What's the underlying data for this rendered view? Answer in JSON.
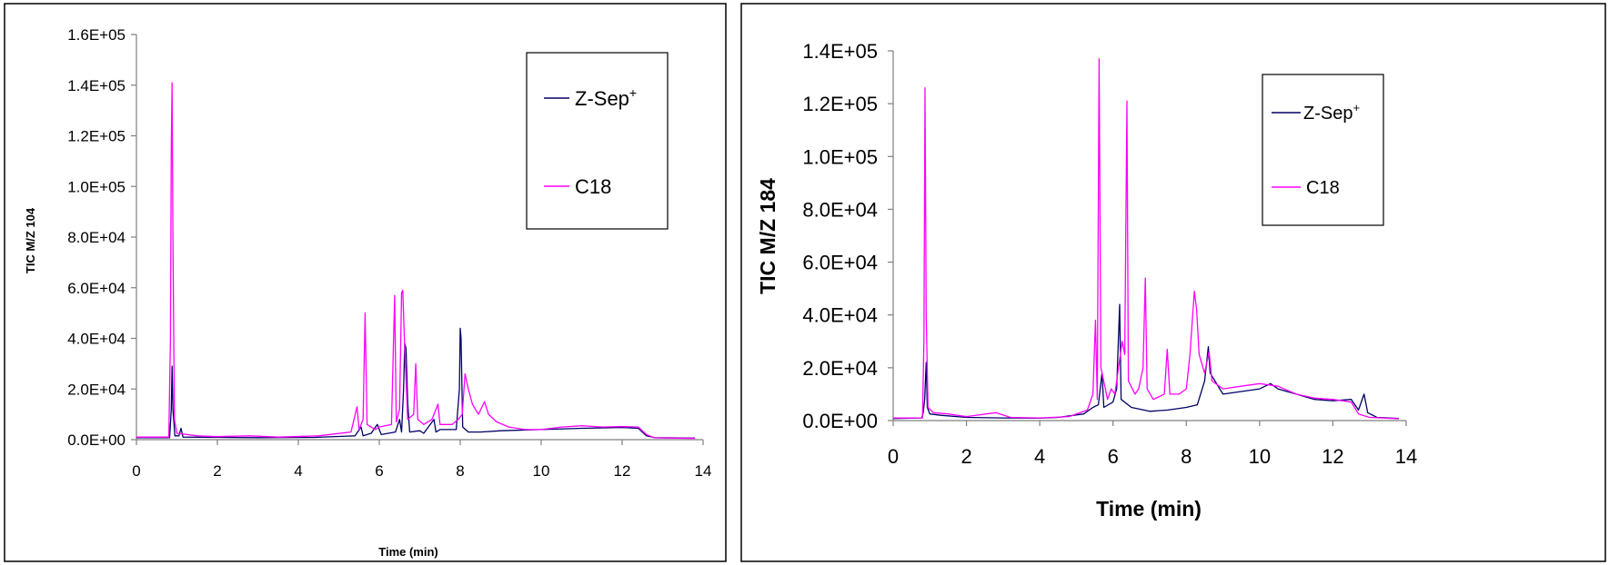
{
  "colors": {
    "zsep": "#000066",
    "c18": "#ff00ff",
    "axis": "#7f7f7f",
    "frame": "#000000"
  },
  "chart_data": [
    {
      "type": "line",
      "xlabel": "Time (min)",
      "ylabel": "TIC M/Z 104",
      "xlim": [
        0,
        14
      ],
      "ylim": [
        0,
        160000
      ],
      "x_ticks": [
        "0",
        "2",
        "4",
        "6",
        "8",
        "10",
        "12",
        "14"
      ],
      "y_ticks": [
        "0.0E+00",
        "2.0E+04",
        "4.0E+04",
        "6.0E+04",
        "8.0E+04",
        "1.0E+05",
        "1.2E+05",
        "1.4E+05",
        "1.6E+05"
      ],
      "grid": false,
      "legend_position": "top-right",
      "legend": {
        "zsep_label": "Z-Sep",
        "zsep_sup": "+",
        "c18_label": "C18"
      },
      "series": [
        {
          "name": "Z-Sep+",
          "color": "#000066",
          "points": [
            [
              0,
              800
            ],
            [
              0.82,
              800
            ],
            [
              0.86,
              12000
            ],
            [
              0.88,
              29000
            ],
            [
              0.9,
              12000
            ],
            [
              0.95,
              1500
            ],
            [
              1.05,
              1500
            ],
            [
              1.1,
              4500
            ],
            [
              1.15,
              1000
            ],
            [
              2,
              900
            ],
            [
              3,
              800
            ],
            [
              4.4,
              900
            ],
            [
              5.4,
              1500
            ],
            [
              5.55,
              5000
            ],
            [
              5.6,
              1500
            ],
            [
              5.8,
              2500
            ],
            [
              5.95,
              6000
            ],
            [
              6.05,
              2000
            ],
            [
              6.4,
              3000
            ],
            [
              6.5,
              8000
            ],
            [
              6.55,
              3000
            ],
            [
              6.6,
              20000
            ],
            [
              6.63,
              38000
            ],
            [
              6.66,
              36000
            ],
            [
              6.7,
              15000
            ],
            [
              6.75,
              3000
            ],
            [
              7.0,
              3500
            ],
            [
              7.1,
              2500
            ],
            [
              7.35,
              8000
            ],
            [
              7.4,
              3000
            ],
            [
              7.5,
              4000
            ],
            [
              7.9,
              4000
            ],
            [
              7.98,
              20000
            ],
            [
              8.0,
              44000
            ],
            [
              8.02,
              40000
            ],
            [
              8.06,
              5000
            ],
            [
              8.2,
              3000
            ],
            [
              8.5,
              3000
            ],
            [
              9.0,
              3500
            ],
            [
              10,
              4000
            ],
            [
              11,
              4500
            ],
            [
              12,
              4800
            ],
            [
              12.4,
              4500
            ],
            [
              12.6,
              1500
            ],
            [
              12.8,
              800
            ],
            [
              13.8,
              600
            ]
          ]
        },
        {
          "name": "C18",
          "color": "#ff00ff",
          "points": [
            [
              0,
              1000
            ],
            [
              0.8,
              1000
            ],
            [
              0.84,
              40000
            ],
            [
              0.86,
              115000
            ],
            [
              0.88,
              141000
            ],
            [
              0.9,
              80000
            ],
            [
              0.94,
              8000
            ],
            [
              1.0,
              2500
            ],
            [
              1.5,
              1500
            ],
            [
              2,
              1200
            ],
            [
              2.8,
              1500
            ],
            [
              3.5,
              1000
            ],
            [
              4.5,
              1500
            ],
            [
              5.3,
              3000
            ],
            [
              5.45,
              13000
            ],
            [
              5.5,
              4000
            ],
            [
              5.6,
              8000
            ],
            [
              5.65,
              50000
            ],
            [
              5.7,
              6000
            ],
            [
              5.9,
              4000
            ],
            [
              6.0,
              5000
            ],
            [
              6.3,
              6000
            ],
            [
              6.38,
              57000
            ],
            [
              6.42,
              7000
            ],
            [
              6.5,
              12000
            ],
            [
              6.55,
              58000
            ],
            [
              6.58,
              59000
            ],
            [
              6.62,
              40000
            ],
            [
              6.7,
              8000
            ],
            [
              6.85,
              10000
            ],
            [
              6.9,
              30000
            ],
            [
              6.95,
              8000
            ],
            [
              7.1,
              6000
            ],
            [
              7.3,
              8000
            ],
            [
              7.45,
              14000
            ],
            [
              7.5,
              6000
            ],
            [
              7.8,
              6000
            ],
            [
              7.95,
              8000
            ],
            [
              8.05,
              10000
            ],
            [
              8.12,
              26000
            ],
            [
              8.2,
              20000
            ],
            [
              8.3,
              14000
            ],
            [
              8.45,
              10000
            ],
            [
              8.6,
              15000
            ],
            [
              8.7,
              10000
            ],
            [
              8.9,
              7000
            ],
            [
              9.2,
              5000
            ],
            [
              9.6,
              4000
            ],
            [
              10,
              4000
            ],
            [
              10.5,
              5000
            ],
            [
              11,
              5500
            ],
            [
              11.5,
              5000
            ],
            [
              12,
              5200
            ],
            [
              12.4,
              5000
            ],
            [
              12.6,
              2000
            ],
            [
              12.8,
              700
            ],
            [
              13.8,
              500
            ]
          ]
        }
      ]
    },
    {
      "type": "line",
      "xlabel": "Time (min)",
      "ylabel": "TIC M/Z 184",
      "xlim": [
        0,
        14
      ],
      "ylim": [
        0,
        140000
      ],
      "x_ticks": [
        "0",
        "2",
        "4",
        "6",
        "8",
        "10",
        "12",
        "14"
      ],
      "y_ticks": [
        "0.0E+00",
        "2.0E+04",
        "4.0E+04",
        "6.0E+04",
        "8.0E+04",
        "1.0E+05",
        "1.2E+05",
        "1.4E+05"
      ],
      "grid": false,
      "legend_position": "top-right",
      "legend": {
        "zsep_label": "Z-Sep",
        "zsep_sup": "+",
        "c18_label": "C18"
      },
      "series": [
        {
          "name": "Z-Sep+",
          "color": "#000066",
          "points": [
            [
              0,
              800
            ],
            [
              0.78,
              1000
            ],
            [
              0.82,
              3000
            ],
            [
              0.86,
              8000
            ],
            [
              0.9,
              22000
            ],
            [
              0.93,
              5000
            ],
            [
              1.0,
              2500
            ],
            [
              1.3,
              2000
            ],
            [
              2,
              1200
            ],
            [
              3,
              1000
            ],
            [
              4,
              900
            ],
            [
              4.5,
              1200
            ],
            [
              5.2,
              2500
            ],
            [
              5.45,
              5000
            ],
            [
              5.6,
              6000
            ],
            [
              5.7,
              18000
            ],
            [
              5.75,
              5000
            ],
            [
              6.0,
              7000
            ],
            [
              6.1,
              12000
            ],
            [
              6.18,
              44000
            ],
            [
              6.22,
              8000
            ],
            [
              6.5,
              5000
            ],
            [
              7.0,
              3500
            ],
            [
              7.5,
              4000
            ],
            [
              8.0,
              5000
            ],
            [
              8.3,
              6000
            ],
            [
              8.5,
              15000
            ],
            [
              8.6,
              28000
            ],
            [
              8.65,
              18000
            ],
            [
              9.0,
              10000
            ],
            [
              9.5,
              11000
            ],
            [
              10,
              12000
            ],
            [
              10.3,
              14000
            ],
            [
              10.5,
              12000
            ],
            [
              11,
              10000
            ],
            [
              11.5,
              8000
            ],
            [
              12,
              7500
            ],
            [
              12.5,
              8000
            ],
            [
              12.7,
              4000
            ],
            [
              12.85,
              10000
            ],
            [
              12.95,
              3000
            ],
            [
              13.2,
              1200
            ],
            [
              13.8,
              800
            ]
          ]
        },
        {
          "name": "C18",
          "color": "#ff00ff",
          "points": [
            [
              0,
              1000
            ],
            [
              0.8,
              1000
            ],
            [
              0.84,
              30000
            ],
            [
              0.87,
              126000
            ],
            [
              0.9,
              40000
            ],
            [
              0.95,
              5000
            ],
            [
              1.1,
              3000
            ],
            [
              1.5,
              2500
            ],
            [
              2,
              1500
            ],
            [
              2.8,
              3000
            ],
            [
              3.2,
              1200
            ],
            [
              4,
              1000
            ],
            [
              4.8,
              1500
            ],
            [
              5.3,
              4000
            ],
            [
              5.45,
              10000
            ],
            [
              5.52,
              38000
            ],
            [
              5.57,
              8000
            ],
            [
              5.62,
              137000
            ],
            [
              5.67,
              20000
            ],
            [
              5.85,
              8000
            ],
            [
              5.95,
              12000
            ],
            [
              6.05,
              10000
            ],
            [
              6.25,
              30000
            ],
            [
              6.32,
              25000
            ],
            [
              6.38,
              121000
            ],
            [
              6.42,
              15000
            ],
            [
              6.6,
              10000
            ],
            [
              6.7,
              12000
            ],
            [
              6.82,
              20000
            ],
            [
              6.88,
              54000
            ],
            [
              6.93,
              12000
            ],
            [
              7.1,
              8000
            ],
            [
              7.4,
              10000
            ],
            [
              7.48,
              27000
            ],
            [
              7.55,
              10000
            ],
            [
              7.8,
              10000
            ],
            [
              8.0,
              12000
            ],
            [
              8.1,
              25000
            ],
            [
              8.22,
              49000
            ],
            [
              8.28,
              42000
            ],
            [
              8.35,
              25000
            ],
            [
              8.5,
              18000
            ],
            [
              8.62,
              26000
            ],
            [
              8.7,
              15000
            ],
            [
              9.0,
              12000
            ],
            [
              9.5,
              13000
            ],
            [
              10,
              14000
            ],
            [
              10.5,
              13000
            ],
            [
              11,
              10000
            ],
            [
              11.5,
              8500
            ],
            [
              12,
              8000
            ],
            [
              12.5,
              7000
            ],
            [
              12.7,
              2500
            ],
            [
              13.0,
              1200
            ],
            [
              13.8,
              700
            ]
          ]
        }
      ]
    }
  ]
}
